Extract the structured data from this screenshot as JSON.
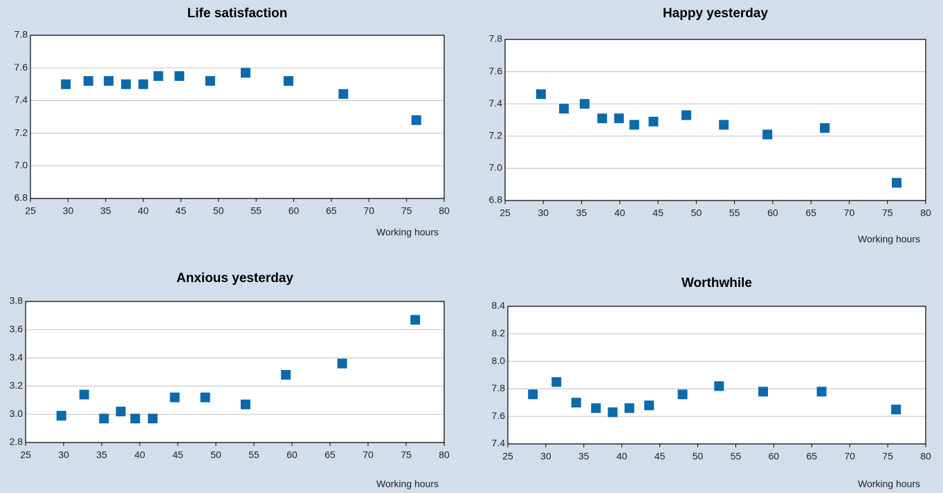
{
  "chart_data": [
    {
      "type": "scatter",
      "title": "Life satisfaction",
      "x_label": "Working hours",
      "color": "#0a6aab",
      "grid": true,
      "x": [
        29.7,
        32.7,
        35.4,
        37.7,
        40,
        42,
        44.8,
        48.9,
        53.6,
        59.3,
        66.6,
        76.3
      ],
      "values": [
        7.5,
        7.52,
        7.52,
        7.5,
        7.5,
        7.55,
        7.55,
        7.52,
        7.57,
        7.52,
        7.44,
        7.28
      ],
      "xlim": [
        25,
        80
      ],
      "xticks": [
        25,
        30,
        35,
        40,
        45,
        50,
        55,
        60,
        65,
        70,
        75,
        80
      ],
      "ylim": [
        6.8,
        7.8
      ],
      "yticks": [
        6.8,
        {
          "value": 7,
          "label": "7.0"
        },
        7.2,
        7.4,
        7.6,
        7.8
      ]
    },
    {
      "type": "scatter",
      "title": "Happy yesterday",
      "x_label": "Working hours",
      "color": "#0a6aab",
      "grid": true,
      "x": [
        29.7,
        32.7,
        35.4,
        37.7,
        39.9,
        41.9,
        44.4,
        48.7,
        53.6,
        59.3,
        66.8,
        76.2
      ],
      "values": [
        7.46,
        7.37,
        7.4,
        7.31,
        7.31,
        7.27,
        7.29,
        7.33,
        7.27,
        7.21,
        7.25,
        6.91
      ],
      "xlim": [
        25,
        80
      ],
      "xticks": [
        25,
        30,
        35,
        40,
        45,
        50,
        55,
        60,
        65,
        70,
        75,
        80
      ],
      "ylim": [
        6.8,
        7.8
      ],
      "yticks": [
        6.8,
        {
          "value": 7,
          "label": "7.0"
        },
        7.2,
        7.4,
        7.6,
        7.8
      ]
    },
    {
      "type": "scatter",
      "title": "Anxious yesterday",
      "x_label": "Working hours",
      "color": "#0a6aab",
      "grid": true,
      "x": [
        29.7,
        32.7,
        35.3,
        37.5,
        39.4,
        41.7,
        44.6,
        48.6,
        53.9,
        59.2,
        66.6,
        76.2
      ],
      "values": [
        2.99,
        3.14,
        2.97,
        3.02,
        2.97,
        2.97,
        3.12,
        3.12,
        3.07,
        3.28,
        3.36,
        3.67
      ],
      "xlim": [
        25,
        80
      ],
      "xticks": [
        25,
        30,
        35,
        40,
        45,
        50,
        55,
        60,
        65,
        70,
        75,
        80
      ],
      "ylim": [
        2.8,
        3.8
      ],
      "yticks": [
        2.8,
        {
          "value": 3,
          "label": "3.0"
        },
        3.2,
        3.4,
        3.6,
        3.8
      ]
    },
    {
      "type": "scatter",
      "title": "Worthwhile",
      "x_label": "Working hours",
      "color": "#0a6aab",
      "grid": true,
      "x": [
        28.3,
        31.4,
        34,
        36.6,
        38.8,
        41,
        43.6,
        48,
        52.8,
        58.6,
        66.3,
        76.1
      ],
      "values": [
        7.76,
        7.85,
        7.7,
        7.66,
        7.63,
        7.66,
        7.68,
        7.76,
        7.82,
        7.78,
        7.78,
        7.65
      ],
      "xlim": [
        25,
        80
      ],
      "xticks": [
        25,
        30,
        35,
        40,
        45,
        50,
        55,
        60,
        65,
        70,
        75,
        80
      ],
      "ylim": [
        7.4,
        8.4
      ],
      "yticks": [
        7.4,
        7.6,
        7.8,
        {
          "value": 8,
          "label": "8.0"
        },
        8.2,
        8.4
      ]
    }
  ]
}
